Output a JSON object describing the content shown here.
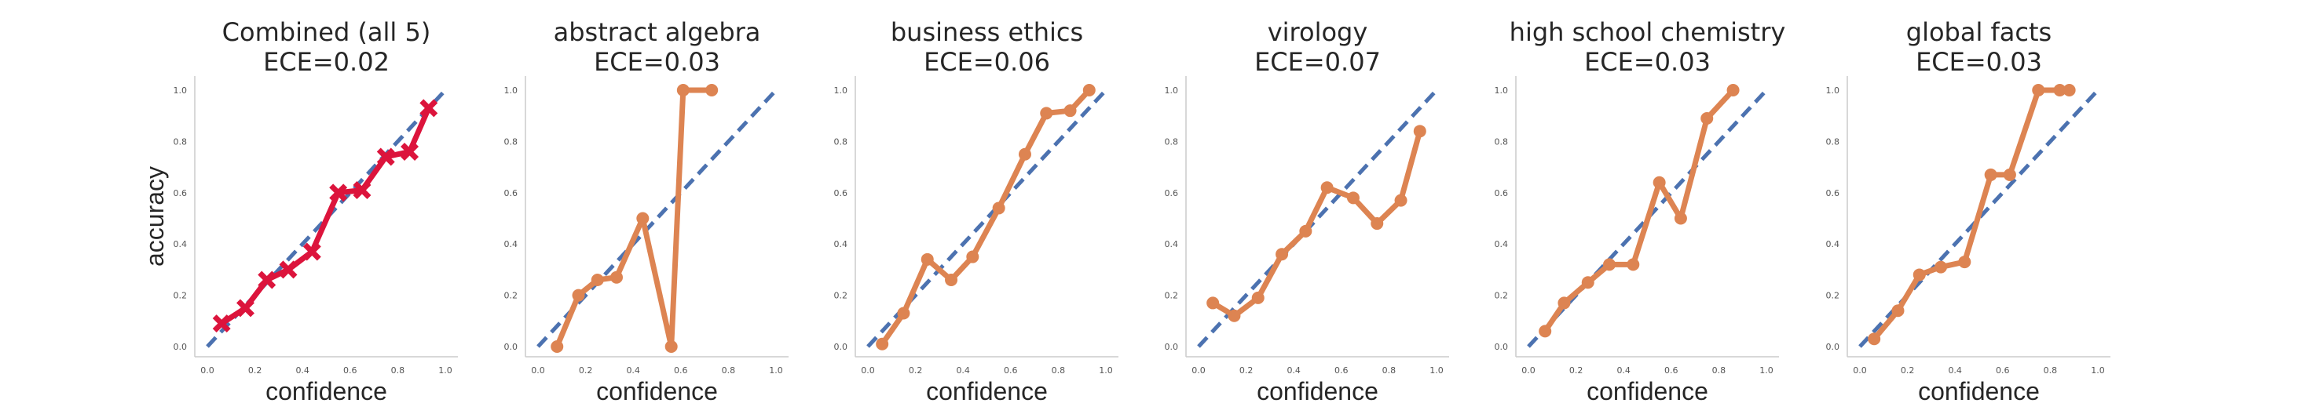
{
  "style": {
    "combined_color": "#dc143c",
    "topic_color": "#dd8452",
    "diagonal_color": "#4c72b0"
  },
  "chart_data": [
    {
      "type": "line",
      "title": "Combined (all 5)",
      "subtitle": "ECE=0.02",
      "xlabel": "confidence",
      "ylabel": "accuracy",
      "marker": "x",
      "xlim": [
        0,
        1
      ],
      "ylim": [
        0,
        1
      ],
      "xticks": [
        "0.0",
        "0.2",
        "0.4",
        "0.6",
        "0.8",
        "1.0"
      ],
      "yticks": [
        "0.0",
        "0.2",
        "0.4",
        "0.6",
        "0.8",
        "1.0"
      ],
      "x": [
        0.06,
        0.16,
        0.25,
        0.34,
        0.44,
        0.55,
        0.65,
        0.75,
        0.85,
        0.93
      ],
      "y": [
        0.09,
        0.15,
        0.26,
        0.3,
        0.37,
        0.6,
        0.61,
        0.74,
        0.76,
        0.93
      ]
    },
    {
      "type": "line",
      "title": "abstract algebra",
      "subtitle": "ECE=0.03",
      "xlabel": "confidence",
      "ylabel": "",
      "marker": "o",
      "xlim": [
        0,
        1
      ],
      "ylim": [
        0,
        1
      ],
      "xticks": [
        "0.0",
        "0.2",
        "0.4",
        "0.6",
        "0.8",
        "1.0"
      ],
      "yticks": [
        "0.0",
        "0.2",
        "0.4",
        "0.6",
        "0.8",
        "1.0"
      ],
      "x": [
        0.08,
        0.17,
        0.25,
        0.33,
        0.44,
        0.56,
        0.61,
        0.73
      ],
      "y": [
        0.0,
        0.2,
        0.26,
        0.27,
        0.5,
        0.0,
        1.0,
        1.0
      ]
    },
    {
      "type": "line",
      "title": "business ethics",
      "subtitle": "ECE=0.06",
      "xlabel": "confidence",
      "ylabel": "",
      "marker": "o",
      "xlim": [
        0,
        1
      ],
      "ylim": [
        0,
        1
      ],
      "xticks": [
        "0.0",
        "0.2",
        "0.4",
        "0.6",
        "0.8",
        "1.0"
      ],
      "yticks": [
        "0.0",
        "0.2",
        "0.4",
        "0.6",
        "0.8",
        "1.0"
      ],
      "x": [
        0.06,
        0.15,
        0.25,
        0.35,
        0.44,
        0.55,
        0.66,
        0.75,
        0.85,
        0.93
      ],
      "y": [
        0.01,
        0.13,
        0.34,
        0.26,
        0.35,
        0.54,
        0.75,
        0.91,
        0.92,
        1.0
      ]
    },
    {
      "type": "line",
      "title": "virology",
      "subtitle": "ECE=0.07",
      "xlabel": "confidence",
      "ylabel": "",
      "marker": "o",
      "xlim": [
        0,
        1
      ],
      "ylim": [
        0,
        1
      ],
      "xticks": [
        "0.0",
        "0.2",
        "0.4",
        "0.6",
        "0.8",
        "1.0"
      ],
      "yticks": [
        "0.0",
        "0.2",
        "0.4",
        "0.6",
        "0.8",
        "1.0"
      ],
      "x": [
        0.06,
        0.15,
        0.25,
        0.35,
        0.45,
        0.54,
        0.65,
        0.75,
        0.85,
        0.93
      ],
      "y": [
        0.17,
        0.12,
        0.19,
        0.36,
        0.45,
        0.62,
        0.58,
        0.48,
        0.57,
        0.84
      ]
    },
    {
      "type": "line",
      "title": "high school chemistry",
      "subtitle": "ECE=0.03",
      "xlabel": "confidence",
      "ylabel": "",
      "marker": "o",
      "xlim": [
        0,
        1
      ],
      "ylim": [
        0,
        1
      ],
      "xticks": [
        "0.0",
        "0.2",
        "0.4",
        "0.6",
        "0.8",
        "1.0"
      ],
      "yticks": [
        "0.0",
        "0.2",
        "0.4",
        "0.6",
        "0.8",
        "1.0"
      ],
      "x": [
        0.07,
        0.15,
        0.25,
        0.34,
        0.44,
        0.55,
        0.64,
        0.75,
        0.86
      ],
      "y": [
        0.06,
        0.17,
        0.25,
        0.32,
        0.32,
        0.64,
        0.5,
        0.89,
        1.0
      ]
    },
    {
      "type": "line",
      "title": "global facts",
      "subtitle": "ECE=0.03",
      "xlabel": "confidence",
      "ylabel": "",
      "marker": "o",
      "xlim": [
        0,
        1
      ],
      "ylim": [
        0,
        1
      ],
      "xticks": [
        "0.0",
        "0.2",
        "0.4",
        "0.6",
        "0.8",
        "1.0"
      ],
      "yticks": [
        "0.0",
        "0.2",
        "0.4",
        "0.6",
        "0.8",
        "1.0"
      ],
      "x": [
        0.06,
        0.16,
        0.25,
        0.34,
        0.44,
        0.55,
        0.63,
        0.75,
        0.84,
        0.88
      ],
      "y": [
        0.03,
        0.14,
        0.28,
        0.31,
        0.33,
        0.67,
        0.67,
        1.0,
        1.0,
        1.0
      ]
    }
  ]
}
